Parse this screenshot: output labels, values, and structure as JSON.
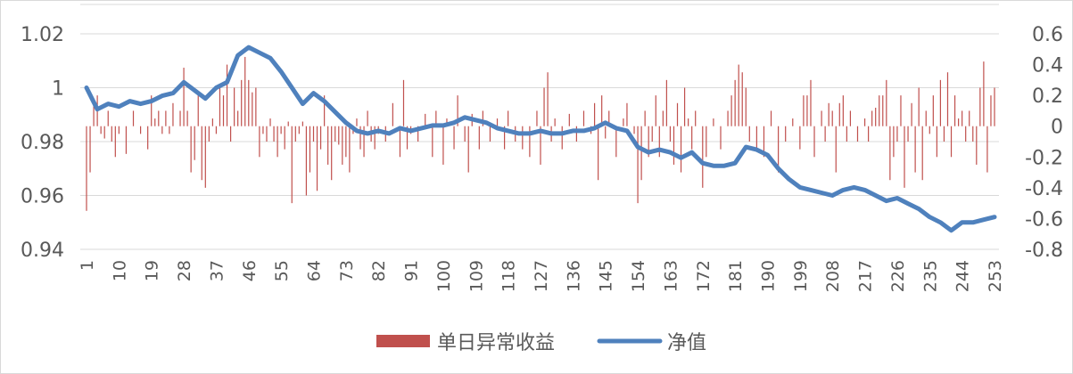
{
  "chart_data": {
    "type": "bar+line",
    "title": "",
    "x_ticks": [
      1,
      10,
      19,
      28,
      37,
      46,
      55,
      64,
      73,
      82,
      91,
      100,
      109,
      118,
      127,
      136,
      145,
      154,
      163,
      172,
      181,
      190,
      199,
      208,
      217,
      226,
      235,
      244,
      253
    ],
    "x_range": [
      1,
      253
    ],
    "left_axis": {
      "ticks": [
        "0.94",
        "0.96",
        "0.98",
        "1",
        "1.02"
      ],
      "tick_values": [
        0.94,
        0.96,
        0.98,
        1.0,
        1.02
      ],
      "range": [
        0.94,
        1.02
      ]
    },
    "right_axis": {
      "ticks": [
        "-0.8",
        "-0.6",
        "-0.4",
        "-0.2",
        "0",
        "0.2",
        "0.4",
        "0.6"
      ],
      "tick_values": [
        -0.8,
        -0.6,
        -0.4,
        -0.2,
        0,
        0.2,
        0.4,
        0.6
      ],
      "range": [
        -0.8,
        0.6
      ]
    },
    "legend_position": "bottom",
    "series": [
      {
        "name": "单日异常收益",
        "type": "bar",
        "axis": "right",
        "color": "#C0504D",
        "points": [
          [
            1,
            -0.55
          ],
          [
            2,
            -0.3
          ],
          [
            3,
            0.15
          ],
          [
            4,
            0.2
          ],
          [
            5,
            -0.05
          ],
          [
            6,
            -0.08
          ],
          [
            7,
            0.1
          ],
          [
            8,
            -0.1
          ],
          [
            9,
            -0.2
          ],
          [
            10,
            -0.05
          ],
          [
            12,
            -0.18
          ],
          [
            14,
            0.1
          ],
          [
            16,
            -0.05
          ],
          [
            18,
            -0.15
          ],
          [
            19,
            0.2
          ],
          [
            20,
            0.05
          ],
          [
            21,
            0.1
          ],
          [
            22,
            -0.05
          ],
          [
            23,
            0.1
          ],
          [
            24,
            -0.05
          ],
          [
            25,
            0.15
          ],
          [
            27,
            0.1
          ],
          [
            28,
            0.38
          ],
          [
            29,
            0.1
          ],
          [
            30,
            -0.3
          ],
          [
            31,
            -0.22
          ],
          [
            32,
            0.2
          ],
          [
            33,
            -0.35
          ],
          [
            34,
            -0.4
          ],
          [
            35,
            -0.1
          ],
          [
            36,
            0.05
          ],
          [
            37,
            -0.05
          ],
          [
            38,
            0.25
          ],
          [
            39,
            0.2
          ],
          [
            40,
            0.4
          ],
          [
            41,
            -0.1
          ],
          [
            42,
            0.25
          ],
          [
            43,
            0.1
          ],
          [
            44,
            0.3
          ],
          [
            45,
            0.45
          ],
          [
            46,
            0.3
          ],
          [
            47,
            0.22
          ],
          [
            48,
            0.25
          ],
          [
            49,
            -0.2
          ],
          [
            50,
            -0.05
          ],
          [
            51,
            -0.1
          ],
          [
            52,
            0.05
          ],
          [
            53,
            -0.1
          ],
          [
            54,
            -0.2
          ],
          [
            55,
            -0.05
          ],
          [
            56,
            -0.15
          ],
          [
            57,
            0.03
          ],
          [
            58,
            -0.5
          ],
          [
            59,
            -0.1
          ],
          [
            60,
            -0.05
          ],
          [
            61,
            0.03
          ],
          [
            62,
            -0.45
          ],
          [
            63,
            -0.3
          ],
          [
            64,
            -0.1
          ],
          [
            65,
            -0.42
          ],
          [
            66,
            -0.15
          ],
          [
            67,
            0.2
          ],
          [
            68,
            -0.25
          ],
          [
            69,
            -0.35
          ],
          [
            70,
            -0.1
          ],
          [
            71,
            -0.12
          ],
          [
            72,
            -0.25
          ],
          [
            73,
            -0.2
          ],
          [
            74,
            -0.3
          ],
          [
            75,
            -0.05
          ],
          [
            76,
            0.05
          ],
          [
            77,
            -0.15
          ],
          [
            78,
            -0.2
          ],
          [
            79,
            0.1
          ],
          [
            80,
            -0.1
          ],
          [
            81,
            -0.15
          ],
          [
            82,
            -0.05
          ],
          [
            84,
            -0.1
          ],
          [
            86,
            0.15
          ],
          [
            88,
            -0.2
          ],
          [
            89,
            0.3
          ],
          [
            90,
            -0.15
          ],
          [
            91,
            -0.05
          ],
          [
            93,
            -0.1
          ],
          [
            95,
            0.08
          ],
          [
            97,
            -0.2
          ],
          [
            98,
            0.1
          ],
          [
            100,
            -0.25
          ],
          [
            101,
            0.05
          ],
          [
            103,
            -0.15
          ],
          [
            104,
            0.2
          ],
          [
            106,
            -0.1
          ],
          [
            107,
            -0.3
          ],
          [
            108,
            0.08
          ],
          [
            110,
            -0.15
          ],
          [
            111,
            0.1
          ],
          [
            113,
            -0.1
          ],
          [
            115,
            0.05
          ],
          [
            117,
            -0.15
          ],
          [
            118,
            0.1
          ],
          [
            120,
            -0.1
          ],
          [
            122,
            -0.15
          ],
          [
            124,
            -0.2
          ],
          [
            126,
            0.1
          ],
          [
            127,
            -0.25
          ],
          [
            128,
            0.25
          ],
          [
            129,
            0.35
          ],
          [
            130,
            -0.1
          ],
          [
            131,
            0.05
          ],
          [
            133,
            -0.15
          ],
          [
            135,
            0.08
          ],
          [
            137,
            -0.1
          ],
          [
            139,
            0.1
          ],
          [
            141,
            -0.05
          ],
          [
            142,
            0.15
          ],
          [
            143,
            -0.35
          ],
          [
            144,
            0.2
          ],
          [
            145,
            -0.08
          ],
          [
            146,
            0.1
          ],
          [
            148,
            -0.2
          ],
          [
            150,
            0.05
          ],
          [
            151,
            0.15
          ],
          [
            153,
            -0.05
          ],
          [
            154,
            -0.5
          ],
          [
            155,
            -0.35
          ],
          [
            156,
            0.1
          ],
          [
            157,
            -0.2
          ],
          [
            158,
            -0.1
          ],
          [
            159,
            0.2
          ],
          [
            160,
            -0.2
          ],
          [
            161,
            0.1
          ],
          [
            162,
            0.3
          ],
          [
            163,
            -0.1
          ],
          [
            164,
            -0.25
          ],
          [
            165,
            0.15
          ],
          [
            166,
            -0.3
          ],
          [
            167,
            0.25
          ],
          [
            168,
            0.05
          ],
          [
            169,
            -0.15
          ],
          [
            170,
            0.1
          ],
          [
            172,
            -0.4
          ],
          [
            173,
            -0.2
          ],
          [
            175,
            0.05
          ],
          [
            177,
            -0.15
          ],
          [
            179,
            0.1
          ],
          [
            180,
            0.2
          ],
          [
            181,
            0.3
          ],
          [
            182,
            0.4
          ],
          [
            183,
            0.35
          ],
          [
            184,
            0.25
          ],
          [
            185,
            -0.1
          ],
          [
            187,
            -0.15
          ],
          [
            189,
            -0.2
          ],
          [
            191,
            0.1
          ],
          [
            193,
            -0.3
          ],
          [
            195,
            -0.1
          ],
          [
            197,
            0.05
          ],
          [
            199,
            -0.15
          ],
          [
            200,
            0.2
          ],
          [
            201,
            0.2
          ],
          [
            202,
            0.3
          ],
          [
            203,
            -0.2
          ],
          [
            205,
            0.1
          ],
          [
            206,
            -0.1
          ],
          [
            207,
            0.15
          ],
          [
            208,
            0.1
          ],
          [
            209,
            -0.3
          ],
          [
            210,
            0.15
          ],
          [
            211,
            0.2
          ],
          [
            212,
            -0.1
          ],
          [
            213,
            0.1
          ],
          [
            215,
            -0.1
          ],
          [
            217,
            0.05
          ],
          [
            218,
            -0.1
          ],
          [
            219,
            0.1
          ],
          [
            220,
            0.12
          ],
          [
            221,
            0.2
          ],
          [
            222,
            0.2
          ],
          [
            223,
            0.3
          ],
          [
            224,
            -0.35
          ],
          [
            225,
            -0.2
          ],
          [
            226,
            -0.1
          ],
          [
            227,
            0.2
          ],
          [
            228,
            -0.4
          ],
          [
            229,
            -0.1
          ],
          [
            230,
            0.15
          ],
          [
            231,
            -0.3
          ],
          [
            232,
            0.25
          ],
          [
            233,
            -0.35
          ],
          [
            234,
            0.1
          ],
          [
            235,
            -0.05
          ],
          [
            236,
            0.2
          ],
          [
            237,
            -0.2
          ],
          [
            238,
            0.3
          ],
          [
            239,
            -0.1
          ],
          [
            240,
            0.35
          ],
          [
            241,
            -0.2
          ],
          [
            242,
            0.2
          ],
          [
            243,
            0.05
          ],
          [
            244,
            0.1
          ],
          [
            245,
            -0.1
          ],
          [
            246,
            0.1
          ],
          [
            247,
            -0.1
          ],
          [
            248,
            -0.25
          ],
          [
            249,
            0.25
          ],
          [
            250,
            0.42
          ],
          [
            251,
            -0.3
          ],
          [
            252,
            0.2
          ],
          [
            253,
            0.25
          ]
        ]
      },
      {
        "name": "净值",
        "type": "line",
        "axis": "left",
        "color": "#4F81BD",
        "points": [
          [
            1,
            1.0
          ],
          [
            4,
            0.992
          ],
          [
            7,
            0.994
          ],
          [
            10,
            0.993
          ],
          [
            13,
            0.995
          ],
          [
            16,
            0.994
          ],
          [
            19,
            0.995
          ],
          [
            22,
            0.997
          ],
          [
            25,
            0.998
          ],
          [
            28,
            1.002
          ],
          [
            31,
            0.999
          ],
          [
            34,
            0.996
          ],
          [
            37,
            1.0
          ],
          [
            40,
            1.002
          ],
          [
            43,
            1.012
          ],
          [
            46,
            1.015
          ],
          [
            49,
            1.013
          ],
          [
            52,
            1.011
          ],
          [
            55,
            1.006
          ],
          [
            58,
            1.0
          ],
          [
            61,
            0.994
          ],
          [
            64,
            0.998
          ],
          [
            67,
            0.995
          ],
          [
            70,
            0.991
          ],
          [
            73,
            0.987
          ],
          [
            76,
            0.984
          ],
          [
            79,
            0.983
          ],
          [
            82,
            0.984
          ],
          [
            85,
            0.983
          ],
          [
            88,
            0.985
          ],
          [
            91,
            0.984
          ],
          [
            94,
            0.985
          ],
          [
            97,
            0.986
          ],
          [
            100,
            0.986
          ],
          [
            103,
            0.987
          ],
          [
            106,
            0.989
          ],
          [
            109,
            0.988
          ],
          [
            112,
            0.987
          ],
          [
            115,
            0.985
          ],
          [
            118,
            0.984
          ],
          [
            121,
            0.983
          ],
          [
            124,
            0.983
          ],
          [
            127,
            0.984
          ],
          [
            130,
            0.983
          ],
          [
            133,
            0.983
          ],
          [
            136,
            0.984
          ],
          [
            139,
            0.984
          ],
          [
            142,
            0.985
          ],
          [
            145,
            0.987
          ],
          [
            148,
            0.985
          ],
          [
            151,
            0.984
          ],
          [
            154,
            0.978
          ],
          [
            157,
            0.976
          ],
          [
            160,
            0.977
          ],
          [
            163,
            0.976
          ],
          [
            166,
            0.974
          ],
          [
            169,
            0.976
          ],
          [
            172,
            0.972
          ],
          [
            175,
            0.971
          ],
          [
            178,
            0.971
          ],
          [
            181,
            0.972
          ],
          [
            184,
            0.978
          ],
          [
            187,
            0.977
          ],
          [
            190,
            0.975
          ],
          [
            193,
            0.97
          ],
          [
            196,
            0.966
          ],
          [
            199,
            0.963
          ],
          [
            202,
            0.962
          ],
          [
            205,
            0.961
          ],
          [
            208,
            0.96
          ],
          [
            211,
            0.962
          ],
          [
            214,
            0.963
          ],
          [
            217,
            0.962
          ],
          [
            220,
            0.96
          ],
          [
            223,
            0.958
          ],
          [
            226,
            0.959
          ],
          [
            229,
            0.957
          ],
          [
            232,
            0.955
          ],
          [
            235,
            0.952
          ],
          [
            238,
            0.95
          ],
          [
            241,
            0.947
          ],
          [
            244,
            0.95
          ],
          [
            247,
            0.95
          ],
          [
            250,
            0.951
          ],
          [
            253,
            0.952
          ]
        ]
      }
    ]
  }
}
